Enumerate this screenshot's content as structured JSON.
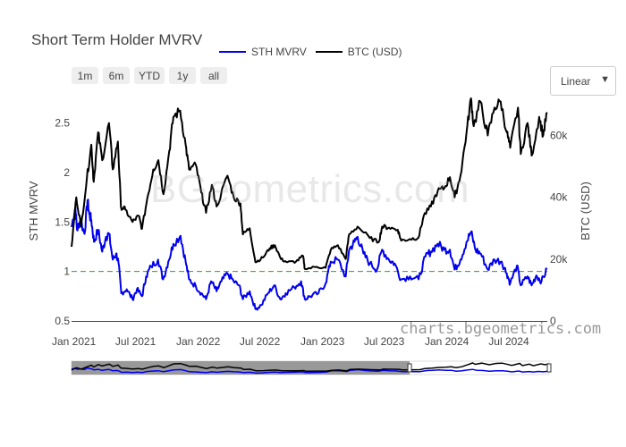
{
  "chart_data": {
    "type": "line",
    "title": "Short Term Holder MVRV",
    "subtitle": "",
    "xlabel": "",
    "ylabel": "STH MVRV",
    "y2label": "BTC (USD)",
    "x_range": [
      "2020-12-25",
      "2024-10-22"
    ],
    "ylim": [
      0.5,
      2.75
    ],
    "y2lim": [
      0,
      72000
    ],
    "x_ticks": [
      {
        "date": "2021-01-01",
        "label": "Jan 2021"
      },
      {
        "date": "2021-07-01",
        "label": "Jul 2021"
      },
      {
        "date": "2022-01-01",
        "label": "Jan 2022"
      },
      {
        "date": "2022-07-01",
        "label": "Jul 2022"
      },
      {
        "date": "2023-01-01",
        "label": "Jan 2023"
      },
      {
        "date": "2023-07-01",
        "label": "Jul 2023"
      },
      {
        "date": "2024-01-01",
        "label": "Jan 2024"
      },
      {
        "date": "2024-07-01",
        "label": "Jul 2024"
      }
    ],
    "y_ticks": [
      {
        "value": 0.5,
        "label": "0.5"
      },
      {
        "value": 1,
        "label": "1"
      },
      {
        "value": 1.5,
        "label": "1.5"
      },
      {
        "value": 2,
        "label": "2"
      },
      {
        "value": 2.5,
        "label": "2.5"
      }
    ],
    "y2_ticks": [
      {
        "value": 0,
        "label": "0"
      },
      {
        "value": 20000,
        "label": "20k"
      },
      {
        "value": 40000,
        "label": "40k"
      },
      {
        "value": 60000,
        "label": "60k"
      }
    ],
    "reference_line": {
      "axis": "y",
      "value": 1,
      "style": "dashed",
      "color": "#2ca02c"
    },
    "legend_position": "top",
    "grid": false,
    "series": [
      {
        "name": "STH MVRV",
        "axis": "y",
        "color": "#0000ee",
        "points": [
          [
            "2020-12-25",
            1.45
          ],
          [
            "2021-01-05",
            1.65
          ],
          [
            "2021-01-10",
            1.42
          ],
          [
            "2021-01-20",
            1.52
          ],
          [
            "2021-02-01",
            1.38
          ],
          [
            "2021-02-10",
            1.72
          ],
          [
            "2021-02-15",
            1.58
          ],
          [
            "2021-02-21",
            1.52
          ],
          [
            "2021-03-01",
            1.3
          ],
          [
            "2021-03-13",
            1.42
          ],
          [
            "2021-03-25",
            1.2
          ],
          [
            "2021-04-05",
            1.35
          ],
          [
            "2021-04-14",
            1.38
          ],
          [
            "2021-04-25",
            1.12
          ],
          [
            "2021-05-05",
            1.18
          ],
          [
            "2021-05-12",
            1.08
          ],
          [
            "2021-05-20",
            0.78
          ],
          [
            "2021-06-05",
            0.82
          ],
          [
            "2021-06-22",
            0.72
          ],
          [
            "2021-07-05",
            0.82
          ],
          [
            "2021-07-20",
            0.75
          ],
          [
            "2021-08-01",
            0.95
          ],
          [
            "2021-08-15",
            1.05
          ],
          [
            "2021-09-05",
            1.12
          ],
          [
            "2021-09-20",
            0.92
          ],
          [
            "2021-10-05",
            1.1
          ],
          [
            "2021-10-20",
            1.28
          ],
          [
            "2021-11-10",
            1.36
          ],
          [
            "2021-11-25",
            1.1
          ],
          [
            "2021-12-05",
            0.92
          ],
          [
            "2021-12-25",
            0.85
          ],
          [
            "2022-01-10",
            0.78
          ],
          [
            "2022-01-24",
            0.72
          ],
          [
            "2022-02-08",
            0.9
          ],
          [
            "2022-02-24",
            0.8
          ],
          [
            "2022-03-10",
            0.9
          ],
          [
            "2022-03-28",
            0.98
          ],
          [
            "2022-04-15",
            0.9
          ],
          [
            "2022-05-01",
            0.86
          ],
          [
            "2022-05-12",
            0.72
          ],
          [
            "2022-06-01",
            0.8
          ],
          [
            "2022-06-18",
            0.62
          ],
          [
            "2022-07-05",
            0.66
          ],
          [
            "2022-07-25",
            0.78
          ],
          [
            "2022-08-12",
            0.86
          ],
          [
            "2022-08-30",
            0.72
          ],
          [
            "2022-09-15",
            0.78
          ],
          [
            "2022-10-10",
            0.84
          ],
          [
            "2022-10-30",
            0.9
          ],
          [
            "2022-11-10",
            0.72
          ],
          [
            "2022-11-25",
            0.75
          ],
          [
            "2022-12-20",
            0.78
          ],
          [
            "2023-01-10",
            0.88
          ],
          [
            "2023-01-25",
            1.1
          ],
          [
            "2023-02-15",
            1.12
          ],
          [
            "2023-03-10",
            0.95
          ],
          [
            "2023-03-20",
            1.22
          ],
          [
            "2023-04-05",
            1.3
          ],
          [
            "2023-04-14",
            1.35
          ],
          [
            "2023-05-01",
            1.18
          ],
          [
            "2023-05-20",
            1.08
          ],
          [
            "2023-06-10",
            1.02
          ],
          [
            "2023-06-25",
            1.22
          ],
          [
            "2023-07-15",
            1.12
          ],
          [
            "2023-08-01",
            1.08
          ],
          [
            "2023-08-20",
            0.92
          ],
          [
            "2023-09-15",
            0.95
          ],
          [
            "2023-10-10",
            0.92
          ],
          [
            "2023-10-30",
            1.15
          ],
          [
            "2023-11-15",
            1.2
          ],
          [
            "2023-12-05",
            1.28
          ],
          [
            "2023-12-25",
            1.22
          ],
          [
            "2024-01-10",
            1.22
          ],
          [
            "2024-01-24",
            1.02
          ],
          [
            "2024-02-10",
            1.12
          ],
          [
            "2024-02-28",
            1.3
          ],
          [
            "2024-03-12",
            1.4
          ],
          [
            "2024-03-25",
            1.22
          ],
          [
            "2024-04-10",
            1.18
          ],
          [
            "2024-04-30",
            1.02
          ],
          [
            "2024-05-20",
            1.12
          ],
          [
            "2024-06-10",
            1.1
          ],
          [
            "2024-06-25",
            0.98
          ],
          [
            "2024-07-05",
            0.88
          ],
          [
            "2024-07-25",
            1.06
          ],
          [
            "2024-08-05",
            0.86
          ],
          [
            "2024-08-25",
            0.95
          ],
          [
            "2024-09-06",
            0.86
          ],
          [
            "2024-09-20",
            0.96
          ],
          [
            "2024-10-05",
            0.9
          ],
          [
            "2024-10-21",
            1.02
          ]
        ]
      },
      {
        "name": "BTC (USD)",
        "axis": "y2",
        "color": "#000000",
        "points": [
          [
            "2020-12-25",
            24000
          ],
          [
            "2021-01-08",
            40000
          ],
          [
            "2021-01-22",
            30500
          ],
          [
            "2021-02-08",
            46000
          ],
          [
            "2021-02-21",
            57000
          ],
          [
            "2021-02-28",
            45000
          ],
          [
            "2021-03-13",
            61000
          ],
          [
            "2021-03-25",
            52000
          ],
          [
            "2021-04-14",
            64000
          ],
          [
            "2021-04-25",
            49000
          ],
          [
            "2021-05-10",
            58000
          ],
          [
            "2021-05-19",
            37000
          ],
          [
            "2021-06-01",
            36000
          ],
          [
            "2021-06-22",
            32000
          ],
          [
            "2021-07-10",
            34000
          ],
          [
            "2021-07-20",
            29800
          ],
          [
            "2021-08-05",
            40000
          ],
          [
            "2021-08-22",
            49000
          ],
          [
            "2021-09-06",
            52000
          ],
          [
            "2021-09-21",
            41000
          ],
          [
            "2021-10-08",
            55000
          ],
          [
            "2021-10-20",
            66000
          ],
          [
            "2021-11-09",
            68000
          ],
          [
            "2021-11-25",
            57000
          ],
          [
            "2021-12-05",
            49000
          ],
          [
            "2021-12-25",
            50500
          ],
          [
            "2022-01-10",
            41500
          ],
          [
            "2022-01-24",
            35000
          ],
          [
            "2022-02-10",
            44000
          ],
          [
            "2022-02-24",
            37000
          ],
          [
            "2022-03-28",
            47000
          ],
          [
            "2022-04-15",
            40000
          ],
          [
            "2022-05-05",
            38000
          ],
          [
            "2022-05-12",
            28000
          ],
          [
            "2022-06-01",
            30000
          ],
          [
            "2022-06-18",
            19000
          ],
          [
            "2022-07-10",
            20500
          ],
          [
            "2022-07-30",
            23500
          ],
          [
            "2022-08-14",
            24500
          ],
          [
            "2022-09-01",
            20000
          ],
          [
            "2022-09-20",
            19000
          ],
          [
            "2022-10-15",
            19200
          ],
          [
            "2022-11-05",
            21000
          ],
          [
            "2022-11-10",
            16800
          ],
          [
            "2022-12-15",
            17500
          ],
          [
            "2023-01-10",
            17200
          ],
          [
            "2023-01-25",
            23000
          ],
          [
            "2023-02-15",
            24500
          ],
          [
            "2023-03-10",
            20000
          ],
          [
            "2023-03-20",
            28000
          ],
          [
            "2023-04-14",
            30500
          ],
          [
            "2023-05-20",
            26800
          ],
          [
            "2023-06-15",
            25500
          ],
          [
            "2023-06-25",
            30500
          ],
          [
            "2023-07-15",
            30200
          ],
          [
            "2023-08-10",
            29500
          ],
          [
            "2023-08-20",
            26000
          ],
          [
            "2023-09-15",
            26500
          ],
          [
            "2023-10-10",
            27000
          ],
          [
            "2023-10-25",
            34000
          ],
          [
            "2023-11-15",
            37000
          ],
          [
            "2023-12-05",
            42000
          ],
          [
            "2023-12-25",
            43000
          ],
          [
            "2024-01-10",
            46500
          ],
          [
            "2024-01-24",
            40000
          ],
          [
            "2024-02-10",
            47000
          ],
          [
            "2024-02-28",
            61000
          ],
          [
            "2024-03-12",
            72000
          ],
          [
            "2024-03-20",
            63000
          ],
          [
            "2024-04-08",
            71000
          ],
          [
            "2024-04-30",
            60000
          ],
          [
            "2024-05-20",
            69000
          ],
          [
            "2024-06-07",
            71000
          ],
          [
            "2024-06-25",
            61000
          ],
          [
            "2024-07-05",
            56000
          ],
          [
            "2024-07-28",
            69000
          ],
          [
            "2024-08-05",
            54000
          ],
          [
            "2024-08-25",
            64000
          ],
          [
            "2024-09-06",
            53500
          ],
          [
            "2024-09-28",
            66000
          ],
          [
            "2024-10-10",
            60000
          ],
          [
            "2024-10-21",
            67500
          ]
        ]
      }
    ]
  },
  "controls": {
    "range_buttons": [
      "1m",
      "6m",
      "YTD",
      "1y",
      "all"
    ],
    "scale_select": {
      "value": "Linear",
      "arrow": "▼"
    }
  },
  "watermarks": {
    "brand": "BGeometrics.com",
    "url": "charts.bgeometrics.com"
  }
}
